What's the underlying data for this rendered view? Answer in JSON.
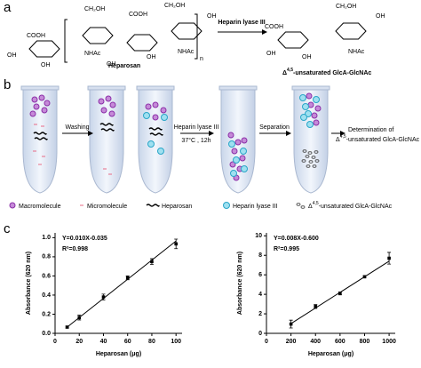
{
  "panel_a": {
    "label": "a",
    "texts": [
      "COOH",
      "OH",
      "OH",
      "CH₂OH",
      "NHAc",
      "COOH",
      "OH",
      "OH",
      "CH₂OH",
      "OH",
      "NHAc",
      "n",
      "Heparosan"
    ],
    "arrow": "Heparin lyase III",
    "product_texts": [
      "COOH",
      "OH",
      "OH",
      "CH₂OH",
      "OH",
      "NHAc"
    ],
    "product_name": {
      "prefix": "Δ",
      "sup": "4,5",
      "text": "-unsaturated GlcA-GlcNAc"
    }
  },
  "panel_b": {
    "label": "b",
    "steps": [
      "Washing",
      "Heparin lyase III",
      "37°C , 12h",
      "Separation"
    ],
    "result": {
      "line1": "Determination of",
      "prefix": "Δ",
      "sup": "4,5",
      "text": "-unsaturated GlcA-GlcNAc"
    },
    "legend": [
      "Macromolecule",
      "Micromolecule",
      "Heparosan",
      "Heparin lyase III",
      {
        "prefix": "Δ",
        "sup": "4,5",
        "text": "-unsaturated GlcA-GlcNAc"
      }
    ]
  },
  "panel_c": {
    "label": "c"
  },
  "chart_data": [
    {
      "type": "scatter",
      "ylabel": "Absorbance (620 nm)",
      "xlabel": "Heparosan (μg)",
      "annotations": [
        "Y=0.010X-0.035",
        "R²=0.998"
      ],
      "x": [
        10,
        20,
        40,
        60,
        80,
        100
      ],
      "series": [
        {
          "color": "#000000",
          "values": [
            0.065,
            0.165,
            0.38,
            0.58,
            0.75,
            0.935
          ],
          "errors": [
            0.01,
            0.025,
            0.03,
            0.02,
            0.03,
            0.05
          ]
        }
      ],
      "fit": {
        "x": [
          10,
          100
        ],
        "values": [
          0.065,
          0.965
        ]
      },
      "xlim": [
        0,
        105
      ],
      "ylim": [
        0,
        1.05
      ],
      "xticks": [
        0,
        20,
        40,
        60,
        80,
        100
      ],
      "yticks": [
        {
          "value": 0,
          "label": "0.0"
        },
        0.2,
        0.4,
        0.6,
        0.8,
        {
          "value": 1,
          "label": "1.0"
        }
      ]
    },
    {
      "type": "scatter",
      "ylabel": "Absorbance (620 nm)",
      "xlabel": "Heparosan (μg)",
      "annotations": [
        "Y=0.008X-0.600",
        "R²=0.995"
      ],
      "x": [
        200,
        400,
        600,
        800,
        1000
      ],
      "series": [
        {
          "color": "#000000",
          "values": [
            0.95,
            2.75,
            4.1,
            5.8,
            7.7
          ],
          "errors": [
            0.4,
            0.2,
            0.15,
            0.1,
            0.6
          ]
        }
      ],
      "fit": {
        "x": [
          200,
          1000
        ],
        "values": [
          1.0,
          7.4
        ]
      },
      "xlim": [
        0,
        1050
      ],
      "ylim": [
        0,
        10.3
      ],
      "xticks": [
        0,
        200,
        400,
        600,
        800,
        1000
      ],
      "yticks": [
        0,
        2,
        4,
        6,
        8,
        10
      ]
    }
  ]
}
